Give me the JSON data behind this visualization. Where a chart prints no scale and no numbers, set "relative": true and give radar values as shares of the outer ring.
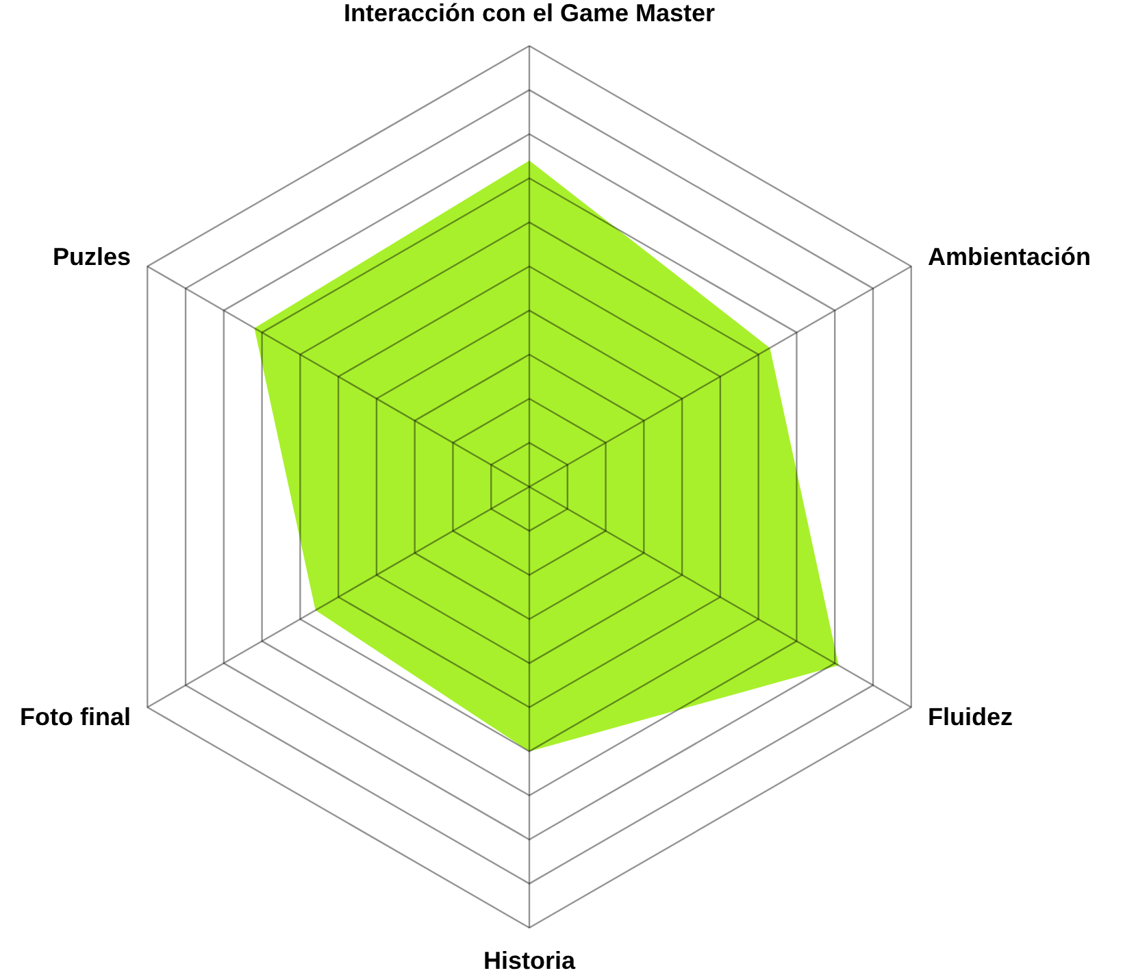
{
  "chart_data": {
    "type": "radar",
    "relative": true,
    "grid": true,
    "categories": [
      "Interacción con el Game Master",
      "Ambientación",
      "Fluidez",
      "Historia",
      "Foto final",
      "Puzles"
    ],
    "series": [
      {
        "color": "#a8f02c",
        "values": [
          0.74,
          0.63,
          0.81,
          0.6,
          0.56,
          0.72
        ]
      }
    ]
  }
}
